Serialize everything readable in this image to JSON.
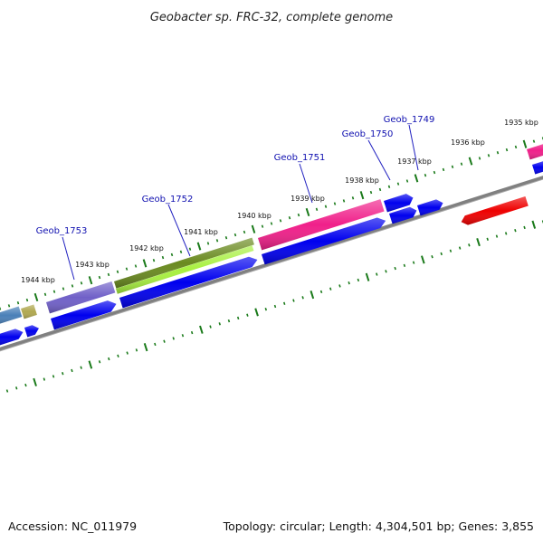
{
  "header": {
    "title": "Geobacter sp. FRC-32, complete genome"
  },
  "footer": {
    "accession": "Accession: NC_011979",
    "summary": "Topology: circular; Length: 4,304,501 bp; Genes: 3,855"
  },
  "ruler": {
    "unit": "kbp",
    "labels": [
      "1944 kbp",
      "1943 kbp",
      "1942 kbp",
      "1941 kbp",
      "1940 kbp",
      "1939 kbp",
      "1938 kbp",
      "1937 kbp",
      "1936 kbp",
      "1935 kbp"
    ]
  },
  "gene_labels": [
    "Geob_1753",
    "Geob_1752",
    "Geob_1751",
    "Geob_1750",
    "Geob_1749"
  ],
  "colors": {
    "backbone": "#808080",
    "tick": "#1a7a1a",
    "cds_forward": "#0000ee",
    "gene_purple": "#7060c8",
    "gene_olive": "#6a8a20",
    "gene_lime": "#a8f040",
    "gene_pink": "#f0208a",
    "gene_red": "#ee0000",
    "gene_steelblue": "#4a80b8",
    "gene_khaki": "#b0a850"
  }
}
